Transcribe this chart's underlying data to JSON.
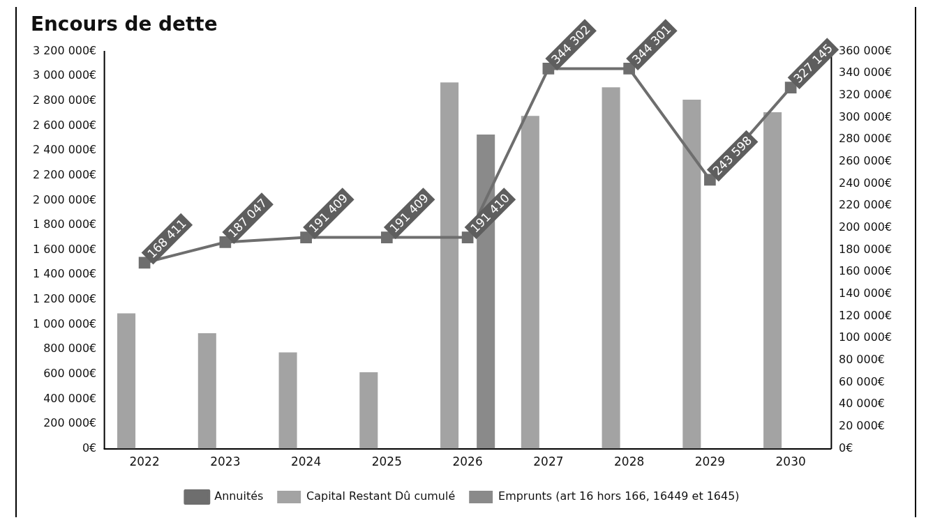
{
  "chart_data": {
    "type": "bar",
    "title": "Encours de dette",
    "categories": [
      "2022",
      "2023",
      "2024",
      "2025",
      "2026",
      "2027",
      "2028",
      "2029",
      "2030"
    ],
    "series": [
      {
        "name": "Capital Restant Dû cumulé",
        "color": "#a3a3a3",
        "values": [
          1090000,
          930000,
          775000,
          615000,
          2950000,
          2680000,
          2910000,
          2810000,
          2710000
        ]
      },
      {
        "name": "Emprunts (art 16 hors 166, 16449 et 1645)",
        "color": "#8a8a8a",
        "values": [
          null,
          null,
          null,
          null,
          2530000,
          null,
          null,
          null,
          null
        ]
      },
      {
        "name": "Annuités",
        "type": "line",
        "axis": "y2",
        "color": "#6e6e6e",
        "values": [
          168411,
          187047,
          191409,
          191409,
          191410,
          344302,
          344301,
          243598,
          327145
        ],
        "value_labels": [
          "168 411",
          "187 047",
          "191 409",
          "191 409",
          "191 410",
          "344 302",
          "344 301",
          "243 598",
          "327 145"
        ]
      }
    ],
    "ylim": [
      0,
      3200000
    ],
    "yticks": [
      {
        "value": 0,
        "label": "0€"
      },
      {
        "value": 200000,
        "label": "200 000€"
      },
      {
        "value": 400000,
        "label": "400 000€"
      },
      {
        "value": 600000,
        "label": "600 000€"
      },
      {
        "value": 800000,
        "label": "800 000€"
      },
      {
        "value": 1000000,
        "label": "1 000 000€"
      },
      {
        "value": 1200000,
        "label": "1 200 000€"
      },
      {
        "value": 1400000,
        "label": "1 400 000€"
      },
      {
        "value": 1600000,
        "label": "1 600 000€"
      },
      {
        "value": 1800000,
        "label": "1 800 000€"
      },
      {
        "value": 2000000,
        "label": "2 000 000€"
      },
      {
        "value": 2200000,
        "label": "2 200 000€"
      },
      {
        "value": 2400000,
        "label": "2 400 000€"
      },
      {
        "value": 2600000,
        "label": "2 600 000€"
      },
      {
        "value": 2800000,
        "label": "2 800 000€"
      },
      {
        "value": 3000000,
        "label": "3 000 000€"
      },
      {
        "value": 3200000,
        "label": "3 200 000€"
      }
    ],
    "y2lim": [
      0,
      360000
    ],
    "y2ticks": [
      {
        "value": 0,
        "label": "0€"
      },
      {
        "value": 20000,
        "label": "20 000€"
      },
      {
        "value": 40000,
        "label": "40 000€"
      },
      {
        "value": 60000,
        "label": "60 000€"
      },
      {
        "value": 80000,
        "label": "80 000€"
      },
      {
        "value": 100000,
        "label": "100 000€"
      },
      {
        "value": 120000,
        "label": "120 000€"
      },
      {
        "value": 140000,
        "label": "140 000€"
      },
      {
        "value": 160000,
        "label": "160 000€"
      },
      {
        "value": 180000,
        "label": "180 000€"
      },
      {
        "value": 200000,
        "label": "200 000€"
      },
      {
        "value": 220000,
        "label": "220 000€"
      },
      {
        "value": 240000,
        "label": "240 000€"
      },
      {
        "value": 260000,
        "label": "260 000€"
      },
      {
        "value": 280000,
        "label": "280 000€"
      },
      {
        "value": 300000,
        "label": "300 000€"
      },
      {
        "value": 320000,
        "label": "320 000€"
      },
      {
        "value": 340000,
        "label": "340 000€"
      },
      {
        "value": 360000,
        "label": "360 000€"
      }
    ],
    "grid": false,
    "legend": "bottom",
    "marker": "square",
    "line_style": "solid"
  }
}
